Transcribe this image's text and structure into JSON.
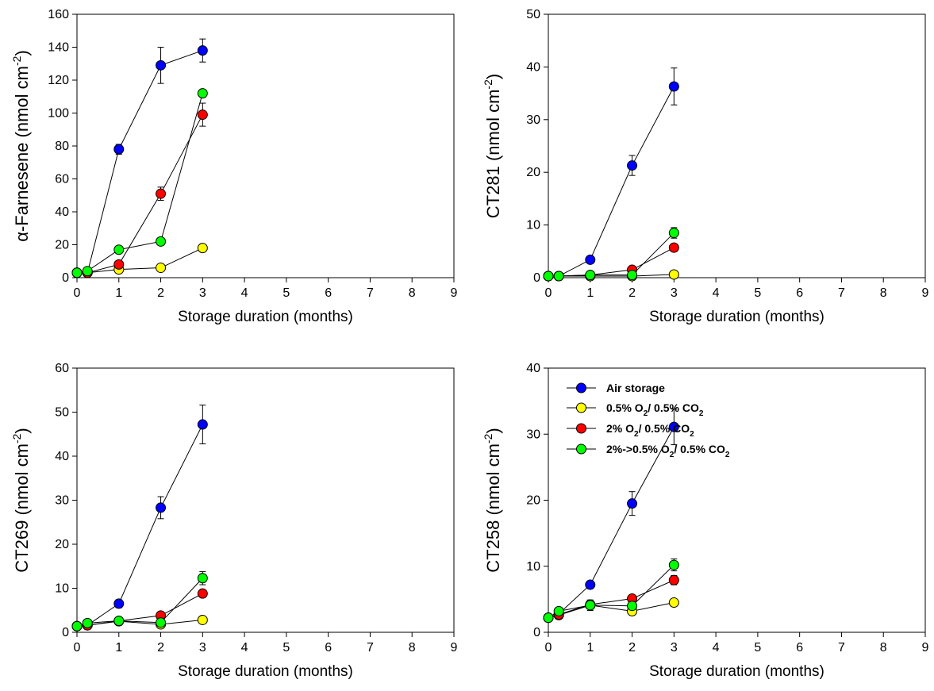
{
  "figure": {
    "legend": {
      "entries": [
        {
          "label": "Air storage",
          "sub": [],
          "color": "#0000ff"
        },
        {
          "label": "0.5% O2/ 0.5% CO2",
          "parts": [
            "0.5% O",
            "2",
            "/ 0.5% CO",
            "2"
          ],
          "color": "#ffff00"
        },
        {
          "label": "2% O2/ 0.5% CO2",
          "parts": [
            "2% O",
            "2",
            "/ 0.5% CO",
            "2"
          ],
          "color": "#ff0000"
        },
        {
          "label": "2%->0.5% O2/ 0.5% CO2",
          "parts": [
            "2%->0.5% O",
            "2",
            "/ 0.5% CO",
            "2"
          ],
          "color": "#00ff00"
        }
      ]
    }
  },
  "chart_data": [
    {
      "type": "line",
      "title": "",
      "xlabel": "Storage duration (months)",
      "ylabel": "α-Farnesene (nmol cm-2)",
      "ylabel_parts": [
        "α-Farnesene (nmol cm",
        "-2",
        ")"
      ],
      "xlim": [
        0,
        9
      ],
      "ylim": [
        0,
        160
      ],
      "xticks": [
        0,
        1,
        2,
        3,
        4,
        5,
        6,
        7,
        8,
        9
      ],
      "yticks": [
        0,
        20,
        40,
        60,
        80,
        100,
        120,
        140,
        160
      ],
      "x": [
        0,
        0.25,
        1,
        2,
        3
      ],
      "series": [
        {
          "name": "Air storage",
          "color": "#0000ff",
          "values": [
            3,
            3,
            78,
            129,
            138
          ],
          "err": [
            0,
            0,
            3,
            11,
            7
          ]
        },
        {
          "name": "0.5% O2/ 0.5% CO2",
          "color": "#ffff00",
          "values": [
            3,
            3,
            5,
            6,
            18
          ],
          "err": [
            0,
            0,
            0,
            0,
            0
          ]
        },
        {
          "name": "2% O2/ 0.5% CO2",
          "color": "#ff0000",
          "values": [
            3,
            3,
            8,
            51,
            99
          ],
          "err": [
            0,
            0,
            2,
            4,
            7
          ]
        },
        {
          "name": "2%->0.5% O2/ 0.5% CO2",
          "color": "#00ff00",
          "values": [
            3,
            4,
            17,
            22,
            112
          ],
          "err": [
            0,
            0,
            0,
            0,
            0
          ]
        }
      ]
    },
    {
      "type": "line",
      "title": "",
      "xlabel": "Storage duration (months)",
      "ylabel": "CT281 (nmol cm-2)",
      "ylabel_parts": [
        "CT281 (nmol cm",
        "-2",
        ")"
      ],
      "xlim": [
        0,
        9
      ],
      "ylim": [
        0,
        50
      ],
      "xticks": [
        0,
        1,
        2,
        3,
        4,
        5,
        6,
        7,
        8,
        9
      ],
      "yticks": [
        0,
        10,
        20,
        30,
        40,
        50
      ],
      "x": [
        0,
        0.25,
        1,
        2,
        3
      ],
      "series": [
        {
          "name": "Air storage",
          "color": "#0000ff",
          "values": [
            0.3,
            0.3,
            3.4,
            21.3,
            36.3
          ],
          "err": [
            0,
            0,
            0.4,
            1.9,
            3.5
          ]
        },
        {
          "name": "0.5% O2/ 0.5% CO2",
          "color": "#ffff00",
          "values": [
            0.3,
            0.3,
            0.3,
            0.3,
            0.6
          ],
          "err": [
            0,
            0,
            0,
            0,
            0
          ]
        },
        {
          "name": "2% O2/ 0.5% CO2",
          "color": "#ff0000",
          "values": [
            0.3,
            0.3,
            0.5,
            1.5,
            5.7
          ],
          "err": [
            0,
            0,
            0,
            0.3,
            0.5
          ]
        },
        {
          "name": "2%->0.5% O2/ 0.5% CO2",
          "color": "#00ff00",
          "values": [
            0.3,
            0.3,
            0.5,
            0.5,
            8.5
          ],
          "err": [
            0,
            0,
            0,
            0,
            1.0
          ]
        }
      ]
    },
    {
      "type": "line",
      "title": "",
      "xlabel": "Storage duration (months)",
      "ylabel": "CT269 (nmol cm-2)",
      "ylabel_parts": [
        "CT269 (nmol cm",
        "-2",
        ")"
      ],
      "xlim": [
        0,
        9
      ],
      "ylim": [
        0,
        60
      ],
      "xticks": [
        0,
        1,
        2,
        3,
        4,
        5,
        6,
        7,
        8,
        9
      ],
      "yticks": [
        0,
        10,
        20,
        30,
        40,
        50,
        60
      ],
      "x": [
        0,
        0.25,
        1,
        2,
        3
      ],
      "series": [
        {
          "name": "Air storage",
          "color": "#0000ff",
          "values": [
            1.4,
            1.6,
            6.5,
            28.3,
            47.2
          ],
          "err": [
            0,
            0,
            0.9,
            2.5,
            4.4
          ]
        },
        {
          "name": "0.5% O2/ 0.5% CO2",
          "color": "#ffff00",
          "values": [
            1.4,
            1.6,
            2.5,
            1.8,
            2.8
          ],
          "err": [
            0,
            0,
            0,
            0,
            0
          ]
        },
        {
          "name": "2% O2/ 0.5% CO2",
          "color": "#ff0000",
          "values": [
            1.4,
            1.6,
            2.6,
            3.8,
            8.8
          ],
          "err": [
            0,
            0,
            0,
            0.5,
            0.7
          ]
        },
        {
          "name": "2%->0.5% O2/ 0.5% CO2",
          "color": "#00ff00",
          "values": [
            1.4,
            2.1,
            2.6,
            2.2,
            12.3
          ],
          "err": [
            0,
            0,
            0,
            0,
            1.5
          ]
        }
      ]
    },
    {
      "type": "line",
      "title": "",
      "xlabel": "Storage duration (months)",
      "ylabel": "CT258 (nmol cm-2)",
      "ylabel_parts": [
        "CT258 (nmol cm",
        "-2",
        ")"
      ],
      "xlim": [
        0,
        9
      ],
      "ylim": [
        0,
        40
      ],
      "xticks": [
        0,
        1,
        2,
        3,
        4,
        5,
        6,
        7,
        8,
        9
      ],
      "yticks": [
        0,
        10,
        20,
        30,
        40
      ],
      "legend": "top-right",
      "x": [
        0,
        0.25,
        1,
        2,
        3
      ],
      "series": [
        {
          "name": "Air storage",
          "color": "#0000ff",
          "values": [
            2.2,
            2.8,
            7.2,
            19.5,
            31.1
          ],
          "err": [
            0,
            0,
            0.5,
            1.8,
            2.7
          ]
        },
        {
          "name": "0.5% O2/ 0.5% CO2",
          "color": "#ffff00",
          "values": [
            2.2,
            2.6,
            4.1,
            3.2,
            4.5
          ],
          "err": [
            0,
            0,
            0.6,
            0,
            0
          ]
        },
        {
          "name": "2% O2/ 0.5% CO2",
          "color": "#ff0000",
          "values": [
            2.2,
            2.7,
            4.2,
            5.1,
            7.9
          ],
          "err": [
            0,
            0,
            0,
            0,
            0.7
          ]
        },
        {
          "name": "2%->0.5% O2/ 0.5% CO2",
          "color": "#00ff00",
          "values": [
            2.2,
            3.2,
            4.1,
            4.0,
            10.2
          ],
          "err": [
            0,
            0,
            0.8,
            0,
            0.9
          ]
        }
      ]
    }
  ]
}
